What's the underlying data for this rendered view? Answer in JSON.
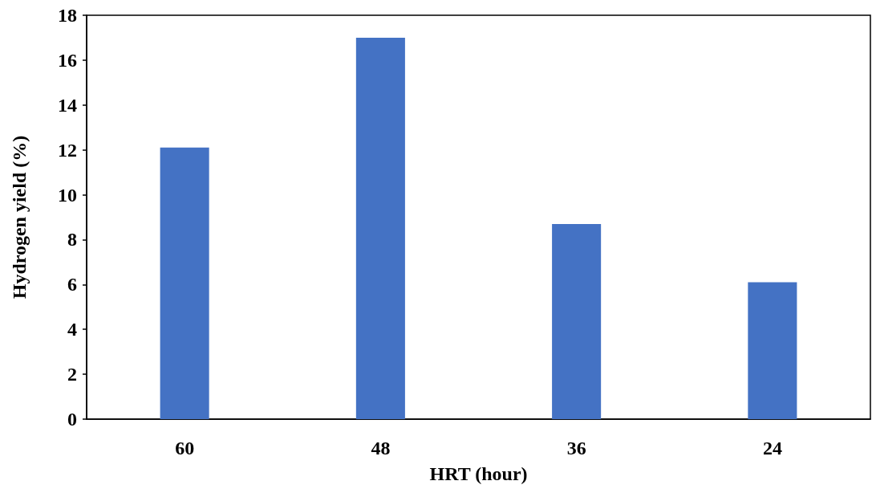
{
  "chart_data": {
    "type": "bar",
    "xlabel": "HRT (hour)",
    "ylabel": "Hydrogen yield (%)",
    "categories": [
      "60",
      "48",
      "36",
      "24"
    ],
    "values": [
      12.1,
      17.0,
      8.7,
      6.1
    ],
    "color": "#4472c4",
    "ylim": [
      0,
      18
    ],
    "yticks": [
      0,
      2,
      4,
      6,
      8,
      10,
      12,
      14,
      16,
      18
    ]
  }
}
